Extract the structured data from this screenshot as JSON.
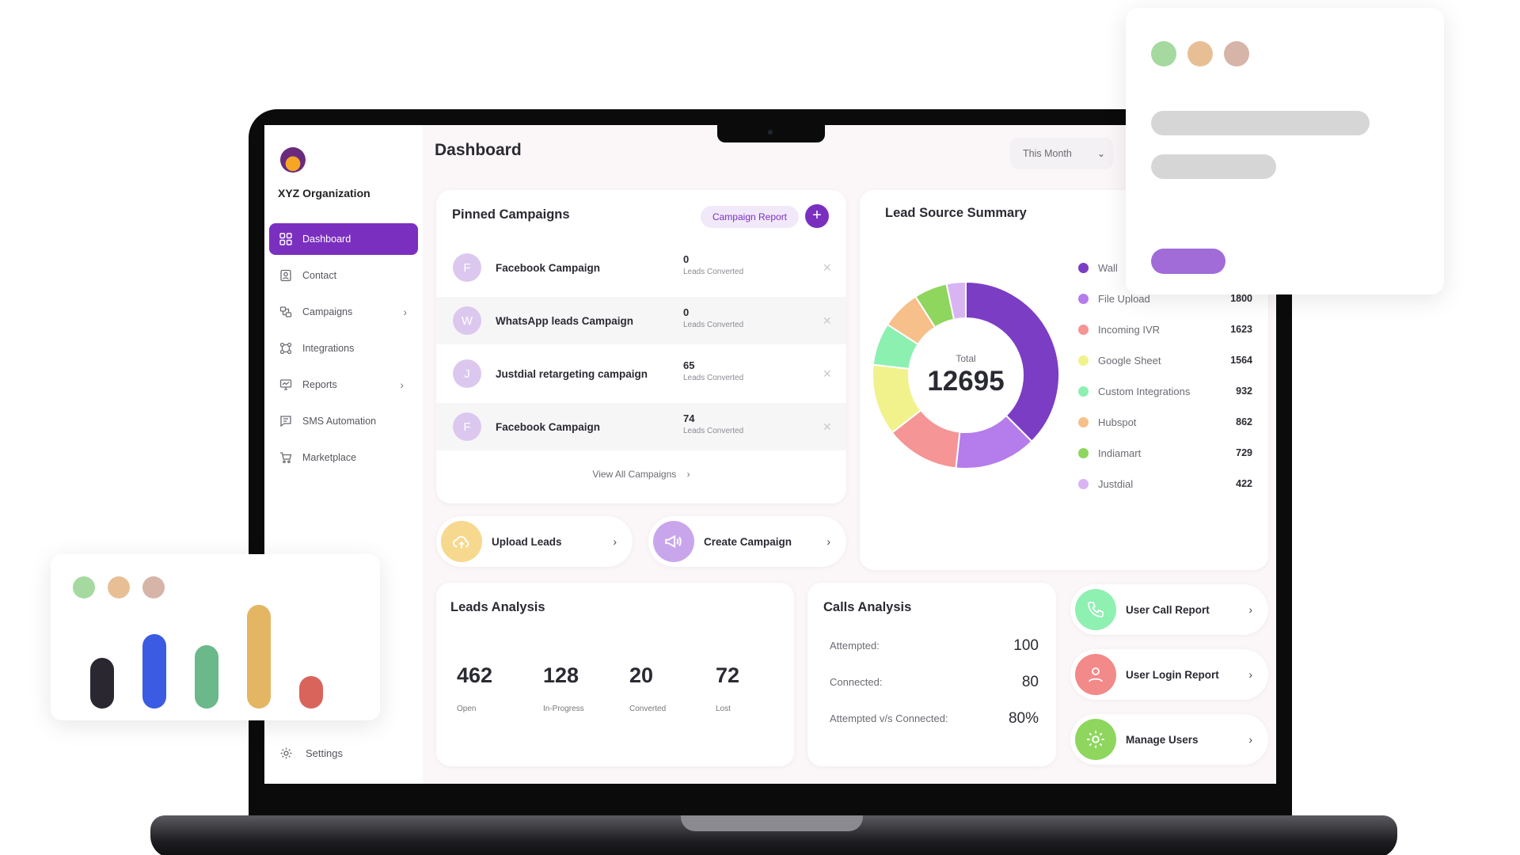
{
  "sidebar": {
    "org_name": "XYZ Organization",
    "items": [
      {
        "label": "Dashboard",
        "icon": "grid-icon",
        "active": true
      },
      {
        "label": "Contact",
        "icon": "contact-card-icon"
      },
      {
        "label": "Campaigns",
        "icon": "campaigns-icon",
        "has_submenu": true
      },
      {
        "label": "Integrations",
        "icon": "integrations-icon"
      },
      {
        "label": "Reports",
        "icon": "reports-monitor-icon",
        "has_submenu": true
      },
      {
        "label": "SMS Automation",
        "icon": "message-icon"
      },
      {
        "label": "Marketplace",
        "icon": "cart-icon"
      }
    ],
    "settings_label": "Settings"
  },
  "header": {
    "title": "Dashboard",
    "period": "This Month"
  },
  "pinned": {
    "title": "Pinned Campaigns",
    "report_label": "Campaign Report",
    "add_label": "+",
    "sub_label": "Leads Converted",
    "view_all": "View All Campaigns",
    "rows": [
      {
        "initial": "F",
        "name": "Facebook Campaign",
        "count": "0"
      },
      {
        "initial": "W",
        "name": "WhatsApp leads Campaign",
        "count": "0"
      },
      {
        "initial": "J",
        "name": "Justdial retargeting campaign",
        "count": "65"
      },
      {
        "initial": "F",
        "name": "Facebook Campaign",
        "count": "74"
      }
    ]
  },
  "actions": {
    "upload": "Upload Leads",
    "create": "Create Campaign"
  },
  "lead_source": {
    "title": "Lead Source Summary",
    "total_label": "Total",
    "total": "12695",
    "legend": [
      {
        "name": "Wall",
        "value": "",
        "color": "#7b3dc4"
      },
      {
        "name": "File Upload",
        "value": "1800",
        "color": "#b57cec"
      },
      {
        "name": "Incoming IVR",
        "value": "1623",
        "color": "#f59595"
      },
      {
        "name": "Google Sheet",
        "value": "1564",
        "color": "#f1f28c"
      },
      {
        "name": "Custom Integrations",
        "value": "932",
        "color": "#8cf0b1"
      },
      {
        "name": "Hubspot",
        "value": "862",
        "color": "#f7bf8a"
      },
      {
        "name": "Indiamart",
        "value": "729",
        "color": "#8ed65e"
      },
      {
        "name": "Justdial",
        "value": "422",
        "color": "#d9b4f3"
      }
    ]
  },
  "leads": {
    "title": "Leads Analysis",
    "stats": [
      {
        "value": "462",
        "label": "Open",
        "color": "#f6f4f5"
      },
      {
        "value": "128",
        "label": "In-Progress",
        "color": "#fdf0e3"
      },
      {
        "value": "20",
        "label": "Converted",
        "color": "#dff0e2"
      },
      {
        "value": "72",
        "label": "Lost",
        "color": "#fbd3d3"
      }
    ]
  },
  "calls": {
    "title": "Calls Analysis",
    "rows": [
      {
        "label": "Attempted:",
        "value": "100"
      },
      {
        "label": "Connected:",
        "value": "80"
      },
      {
        "label": "Attempted v/s Connected:",
        "value": "80%"
      }
    ]
  },
  "reports": [
    {
      "label": "User Call Report",
      "icon": "phone-icon",
      "color": "#8ef0b1"
    },
    {
      "label": "User Login Report",
      "icon": "user-icon",
      "color": "#f28a8a"
    },
    {
      "label": "Manage Users",
      "icon": "gear-icon",
      "color": "#8ed65e"
    }
  ],
  "decor": {
    "dot_colors": [
      "#a5d9a0",
      "#e8bf95",
      "#d6b4a8"
    ],
    "bar_chart": {
      "values": [
        0.33,
        0.48,
        0.41,
        0.67,
        0.21
      ],
      "colors": [
        "#2a2731",
        "#3b5be3",
        "#6bb88a",
        "#e4b664",
        "#d9645c"
      ]
    }
  }
}
